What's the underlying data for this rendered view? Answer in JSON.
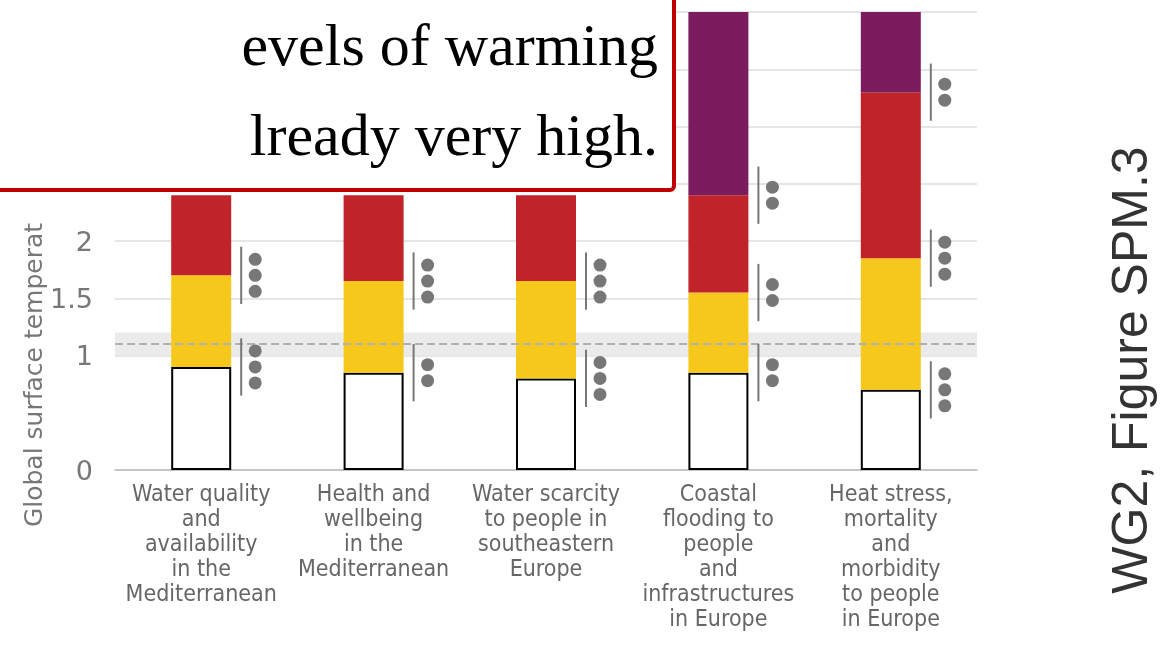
{
  "chart_data": {
    "type": "bar",
    "ylabel": "Global surface temperat",
    "categories": [
      "Water quality\nand\navailability\nin the\nMediterranean",
      "Health and\nwellbeing\nin the\nMediterranean",
      "Water scarcity\nto people in\nsoutheastern\nEurope",
      "Coastal\nflooding to\npeople\nand\ninfrastructures\nin Europe",
      "Heat stress,\nmortality\nand\nmorbidity\nto people\nin Europe"
    ],
    "stacked": true,
    "series": [
      {
        "color": "#ffffff",
        "values": [
          0.9,
          0.85,
          0.8,
          0.85,
          0.7
        ]
      },
      {
        "color": "#f7c81c",
        "values": [
          0.8,
          0.8,
          0.85,
          0.7,
          1.15
        ]
      },
      {
        "color": "#c0242a",
        "values": [
          0.7,
          0.75,
          0.75,
          0.85,
          1.45
        ]
      },
      {
        "color": "#7b1c5e",
        "values": [
          null,
          null,
          null,
          1.6,
          0.7
        ]
      }
    ],
    "ylim": [
      0,
      4
    ],
    "yticks": [
      0,
      1,
      1.5,
      2,
      {
        "value": 2.5,
        "label": null
      },
      {
        "value": 3,
        "label": null
      },
      {
        "value": 3.5,
        "label": null
      },
      {
        "value": 4,
        "label": null
      }
    ],
    "grid": "y",
    "ref_lines": [
      {
        "axis": "y",
        "value": 1.1,
        "label": null,
        "color": "#b0b0b0",
        "line_style": "dashed"
      }
    ],
    "bands": [
      {
        "axis": "y",
        "from": 1.0,
        "to": 1.2,
        "label": null,
        "color": "#ebebeb"
      }
    ],
    "annotations": [
      "evels of warming",
      "lready very high.",
      "WG2, Figure SPM.3"
    ]
  }
}
